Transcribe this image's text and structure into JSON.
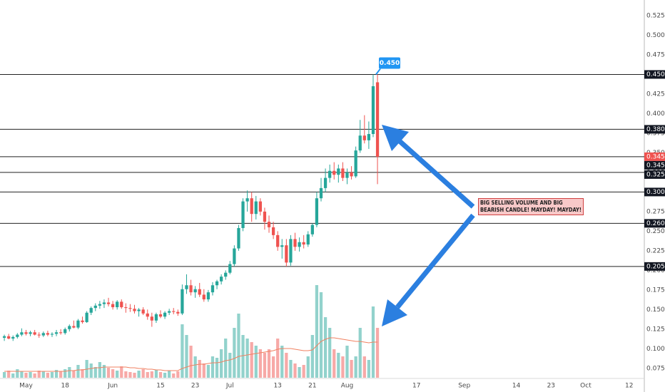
{
  "chart_data": {
    "type": "candlestick",
    "up_color": "#26a69a",
    "down_color": "#ef5350",
    "xlim": [
      -1,
      147
    ],
    "ylim": [
      0.063,
      0.545
    ],
    "xticks": [
      {
        "value": 5,
        "label": "May"
      },
      {
        "value": 14,
        "label": "18"
      },
      {
        "value": 25,
        "label": "Jun"
      },
      {
        "value": 36,
        "label": "15"
      },
      {
        "value": 44,
        "label": "23"
      },
      {
        "value": 52,
        "label": "Jul"
      },
      {
        "value": 63,
        "label": "13"
      },
      {
        "value": 71,
        "label": "21"
      },
      {
        "value": 79,
        "label": "Aug"
      },
      {
        "value": 95,
        "label": "17"
      },
      {
        "value": 106,
        "label": "Sep"
      },
      {
        "value": 118,
        "label": "14"
      },
      {
        "value": 126,
        "label": "23"
      },
      {
        "value": 134,
        "label": "Oct"
      },
      {
        "value": 144,
        "label": "12"
      }
    ],
    "yticks": [
      0.075,
      {
        "value": 0.1,
        "label": "0.100"
      },
      0.125,
      {
        "value": 0.15,
        "label": "0.150"
      },
      0.175,
      {
        "value": 0.2,
        "label": "0.200"
      },
      0.225,
      {
        "value": 0.25,
        "label": "0.250"
      },
      0.275,
      {
        "value": 0.3,
        "label": "0.300"
      },
      0.325,
      {
        "value": 0.35,
        "label": "0.350"
      },
      0.375,
      {
        "value": 0.4,
        "label": "0.400"
      },
      0.425,
      {
        "value": 0.45,
        "label": "0.450"
      },
      0.475,
      {
        "value": 0.5,
        "label": "0.500"
      },
      0.525
    ],
    "ohlc": [
      [
        0.114,
        0.118,
        0.11,
        0.116
      ],
      [
        0.116,
        0.119,
        0.112,
        0.113
      ],
      [
        0.113,
        0.117,
        0.11,
        0.115
      ],
      [
        0.115,
        0.12,
        0.113,
        0.118
      ],
      [
        0.118,
        0.126,
        0.116,
        0.121
      ],
      [
        0.121,
        0.124,
        0.117,
        0.119
      ],
      [
        0.119,
        0.123,
        0.116,
        0.121
      ],
      [
        0.121,
        0.124,
        0.117,
        0.118
      ],
      [
        0.118,
        0.121,
        0.114,
        0.117
      ],
      [
        0.117,
        0.122,
        0.115,
        0.12
      ],
      [
        0.12,
        0.123,
        0.116,
        0.118
      ],
      [
        0.118,
        0.121,
        0.115,
        0.119
      ],
      [
        0.119,
        0.124,
        0.116,
        0.121
      ],
      [
        0.121,
        0.125,
        0.118,
        0.12
      ],
      [
        0.12,
        0.127,
        0.118,
        0.125
      ],
      [
        0.125,
        0.131,
        0.122,
        0.129
      ],
      [
        0.129,
        0.136,
        0.126,
        0.127
      ],
      [
        0.127,
        0.138,
        0.125,
        0.136
      ],
      [
        0.136,
        0.141,
        0.132,
        0.134
      ],
      [
        0.134,
        0.148,
        0.133,
        0.146
      ],
      [
        0.146,
        0.154,
        0.143,
        0.152
      ],
      [
        0.152,
        0.158,
        0.148,
        0.155
      ],
      [
        0.155,
        0.161,
        0.151,
        0.157
      ],
      [
        0.157,
        0.163,
        0.152,
        0.159
      ],
      [
        0.159,
        0.165,
        0.154,
        0.157
      ],
      [
        0.157,
        0.161,
        0.15,
        0.153
      ],
      [
        0.153,
        0.162,
        0.15,
        0.16
      ],
      [
        0.16,
        0.163,
        0.151,
        0.153
      ],
      [
        0.153,
        0.158,
        0.146,
        0.152
      ],
      [
        0.152,
        0.157,
        0.147,
        0.151
      ],
      [
        0.151,
        0.156,
        0.145,
        0.148
      ],
      [
        0.148,
        0.152,
        0.141,
        0.15
      ],
      [
        0.15,
        0.153,
        0.143,
        0.145
      ],
      [
        0.145,
        0.15,
        0.137,
        0.141
      ],
      [
        0.141,
        0.146,
        0.128,
        0.136
      ],
      [
        0.136,
        0.146,
        0.133,
        0.144
      ],
      [
        0.144,
        0.149,
        0.139,
        0.141
      ],
      [
        0.141,
        0.148,
        0.138,
        0.146
      ],
      [
        0.146,
        0.151,
        0.143,
        0.148
      ],
      [
        0.148,
        0.152,
        0.144,
        0.147
      ],
      [
        0.147,
        0.15,
        0.142,
        0.145
      ],
      [
        0.145,
        0.182,
        0.143,
        0.176
      ],
      [
        0.176,
        0.195,
        0.17,
        0.181
      ],
      [
        0.181,
        0.188,
        0.168,
        0.172
      ],
      [
        0.172,
        0.18,
        0.165,
        0.176
      ],
      [
        0.176,
        0.184,
        0.166,
        0.169
      ],
      [
        0.169,
        0.176,
        0.16,
        0.163
      ],
      [
        0.163,
        0.175,
        0.16,
        0.172
      ],
      [
        0.172,
        0.185,
        0.168,
        0.181
      ],
      [
        0.181,
        0.188,
        0.176,
        0.186
      ],
      [
        0.186,
        0.195,
        0.182,
        0.192
      ],
      [
        0.192,
        0.2,
        0.188,
        0.197
      ],
      [
        0.197,
        0.212,
        0.195,
        0.208
      ],
      [
        0.208,
        0.232,
        0.205,
        0.228
      ],
      [
        0.228,
        0.258,
        0.225,
        0.254
      ],
      [
        0.254,
        0.292,
        0.25,
        0.288
      ],
      [
        0.288,
        0.302,
        0.275,
        0.292
      ],
      [
        0.292,
        0.3,
        0.262,
        0.272
      ],
      [
        0.272,
        0.295,
        0.265,
        0.288
      ],
      [
        0.288,
        0.292,
        0.27,
        0.275
      ],
      [
        0.275,
        0.28,
        0.252,
        0.262
      ],
      [
        0.262,
        0.27,
        0.248,
        0.255
      ],
      [
        0.255,
        0.262,
        0.24,
        0.245
      ],
      [
        0.245,
        0.25,
        0.225,
        0.23
      ],
      [
        0.23,
        0.24,
        0.215,
        0.232
      ],
      [
        0.232,
        0.24,
        0.205,
        0.21
      ],
      [
        0.21,
        0.245,
        0.206,
        0.24
      ],
      [
        0.24,
        0.248,
        0.225,
        0.23
      ],
      [
        0.23,
        0.242,
        0.224,
        0.236
      ],
      [
        0.236,
        0.245,
        0.228,
        0.233
      ],
      [
        0.233,
        0.25,
        0.23,
        0.246
      ],
      [
        0.246,
        0.26,
        0.243,
        0.258
      ],
      [
        0.258,
        0.3,
        0.255,
        0.292
      ],
      [
        0.292,
        0.318,
        0.288,
        0.305
      ],
      [
        0.305,
        0.33,
        0.3,
        0.318
      ],
      [
        0.318,
        0.335,
        0.312,
        0.327
      ],
      [
        0.327,
        0.338,
        0.316,
        0.322
      ],
      [
        0.322,
        0.335,
        0.312,
        0.33
      ],
      [
        0.33,
        0.338,
        0.314,
        0.318
      ],
      [
        0.318,
        0.33,
        0.31,
        0.325
      ],
      [
        0.325,
        0.333,
        0.316,
        0.32
      ],
      [
        0.32,
        0.358,
        0.318,
        0.353
      ],
      [
        0.353,
        0.392,
        0.35,
        0.372
      ],
      [
        0.372,
        0.398,
        0.362,
        0.366
      ],
      [
        0.366,
        0.39,
        0.355,
        0.374
      ],
      [
        0.374,
        0.45,
        0.37,
        0.435
      ],
      [
        0.44,
        0.45,
        0.31,
        0.345
      ]
    ],
    "vlim": [
      0,
      150
    ],
    "volume": [
      8,
      10,
      6,
      12,
      9,
      7,
      8,
      6,
      10,
      9,
      7,
      8,
      11,
      9,
      12,
      15,
      10,
      18,
      12,
      25,
      20,
      15,
      22,
      18,
      14,
      12,
      10,
      16,
      9,
      8,
      7,
      10,
      12,
      8,
      9,
      11,
      8,
      7,
      10,
      6,
      9,
      75,
      60,
      45,
      30,
      25,
      20,
      18,
      30,
      28,
      40,
      55,
      35,
      70,
      90,
      60,
      55,
      50,
      45,
      40,
      35,
      40,
      30,
      55,
      45,
      35,
      25,
      20,
      15,
      18,
      30,
      60,
      130,
      120,
      85,
      70,
      40,
      35,
      30,
      45,
      25,
      30,
      70,
      30,
      25,
      100,
      70
    ],
    "volume_ma_color": "#f08060",
    "volume_ma": [
      9,
      9,
      9,
      9,
      9,
      9,
      9,
      9,
      9,
      9,
      9,
      9,
      9,
      9,
      9,
      10,
      10,
      11,
      11,
      12,
      13,
      14,
      14,
      15,
      15,
      15,
      15,
      15,
      15,
      14,
      14,
      13,
      13,
      12,
      12,
      11,
      11,
      10,
      10,
      10,
      10,
      13,
      15,
      17,
      18,
      19,
      19,
      20,
      21,
      21,
      22,
      24,
      25,
      27,
      30,
      31,
      32,
      33,
      34,
      35,
      36,
      37,
      38,
      40,
      41,
      41,
      41,
      40,
      39,
      38,
      38,
      39,
      45,
      51,
      54,
      56,
      56,
      55,
      54,
      53,
      52,
      51,
      51,
      50,
      49,
      50,
      50
    ],
    "levels": [
      {
        "value": 0.45,
        "label": "0.450"
      },
      {
        "value": 0.38,
        "label": "0.380"
      },
      {
        "value": 0.345,
        "label": "0.345"
      },
      {
        "value": 0.325,
        "label": "0.325"
      },
      {
        "value": 0.3,
        "label": "0.300"
      },
      {
        "value": 0.26,
        "label": "0.260"
      },
      {
        "value": 0.205,
        "label": "0.205"
      }
    ],
    "price_callout": {
      "value": 0.45,
      "label": "0.450"
    },
    "annotation": "BIG SELLING VOLUME AND BIG BEARISH CANDLE! MAYDAY! MAYDAY!"
  }
}
